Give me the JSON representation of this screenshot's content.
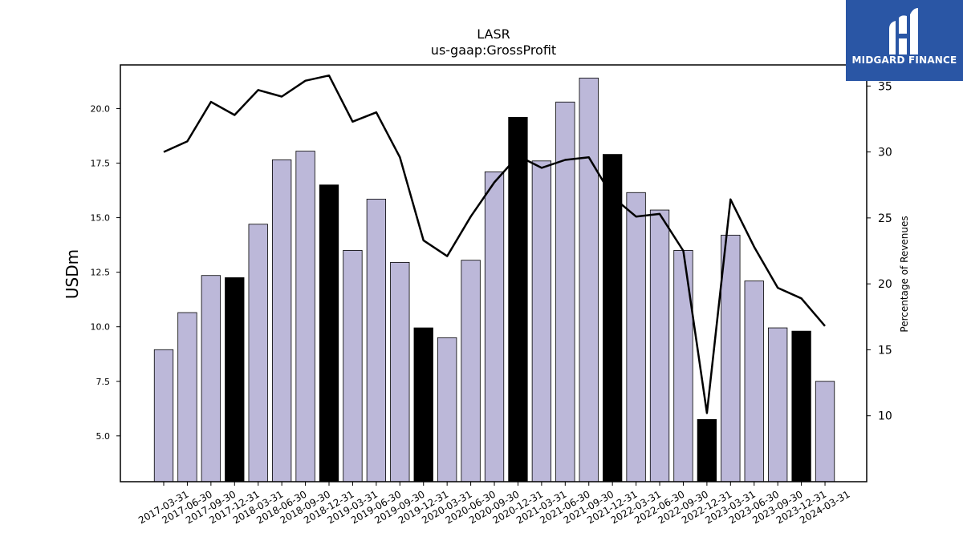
{
  "brand": {
    "name": "MIDGARD FINANCE",
    "bg_color": "#2a56a5"
  },
  "chart_data": {
    "type": "bar",
    "title": "LASR",
    "subtitle": "us-gaap:GrossProfit",
    "ylabel": "USDm",
    "y2label": "Percentage of Revenues",
    "ylim": [
      2.9,
      22.0
    ],
    "y2lim": [
      5.0,
      36.6
    ],
    "yticks": [
      5.0,
      7.5,
      10.0,
      12.5,
      15.0,
      17.5,
      20.0
    ],
    "y2ticks": [
      10,
      15,
      20,
      25,
      30,
      35
    ],
    "bar_color": "#bcb8d9",
    "highlight_color": "#000000",
    "line_color": "#000000",
    "categories": [
      "2017-03-31",
      "2017-06-30",
      "2017-09-30",
      "2017-12-31",
      "2018-03-31",
      "2018-06-30",
      "2018-09-30",
      "2018-12-31",
      "2019-03-31",
      "2019-06-30",
      "2019-09-30",
      "2019-12-31",
      "2020-03-31",
      "2020-06-30",
      "2020-09-30",
      "2020-12-31",
      "2021-03-31",
      "2021-06-30",
      "2021-09-30",
      "2021-12-31",
      "2022-03-31",
      "2022-06-30",
      "2022-09-30",
      "2022-12-31",
      "2023-03-31",
      "2023-06-30",
      "2023-09-30",
      "2023-12-31",
      "2024-03-31"
    ],
    "series": [
      {
        "type": "bar",
        "values": [
          8.95,
          10.65,
          12.35,
          12.25,
          14.7,
          17.65,
          18.05,
          16.5,
          13.5,
          15.85,
          12.95,
          9.95,
          9.5,
          13.05,
          17.1,
          19.6,
          17.6,
          20.3,
          21.4,
          17.9,
          16.15,
          15.35,
          13.5,
          5.75,
          14.2,
          12.1,
          9.95,
          9.8,
          7.5
        ],
        "highlight": [
          false,
          false,
          false,
          true,
          false,
          false,
          false,
          true,
          false,
          false,
          false,
          true,
          false,
          false,
          false,
          true,
          false,
          false,
          false,
          true,
          false,
          false,
          false,
          true,
          false,
          false,
          false,
          true,
          false
        ]
      },
      {
        "type": "line",
        "axis": "right",
        "values": [
          30.0,
          30.8,
          33.8,
          32.8,
          34.7,
          34.2,
          35.4,
          35.8,
          32.3,
          33.0,
          29.6,
          23.3,
          22.1,
          25.1,
          27.7,
          29.7,
          28.8,
          29.4,
          29.6,
          26.6,
          25.1,
          25.3,
          22.5,
          10.2,
          26.4,
          22.8,
          19.7,
          18.9,
          16.8
        ]
      }
    ]
  }
}
